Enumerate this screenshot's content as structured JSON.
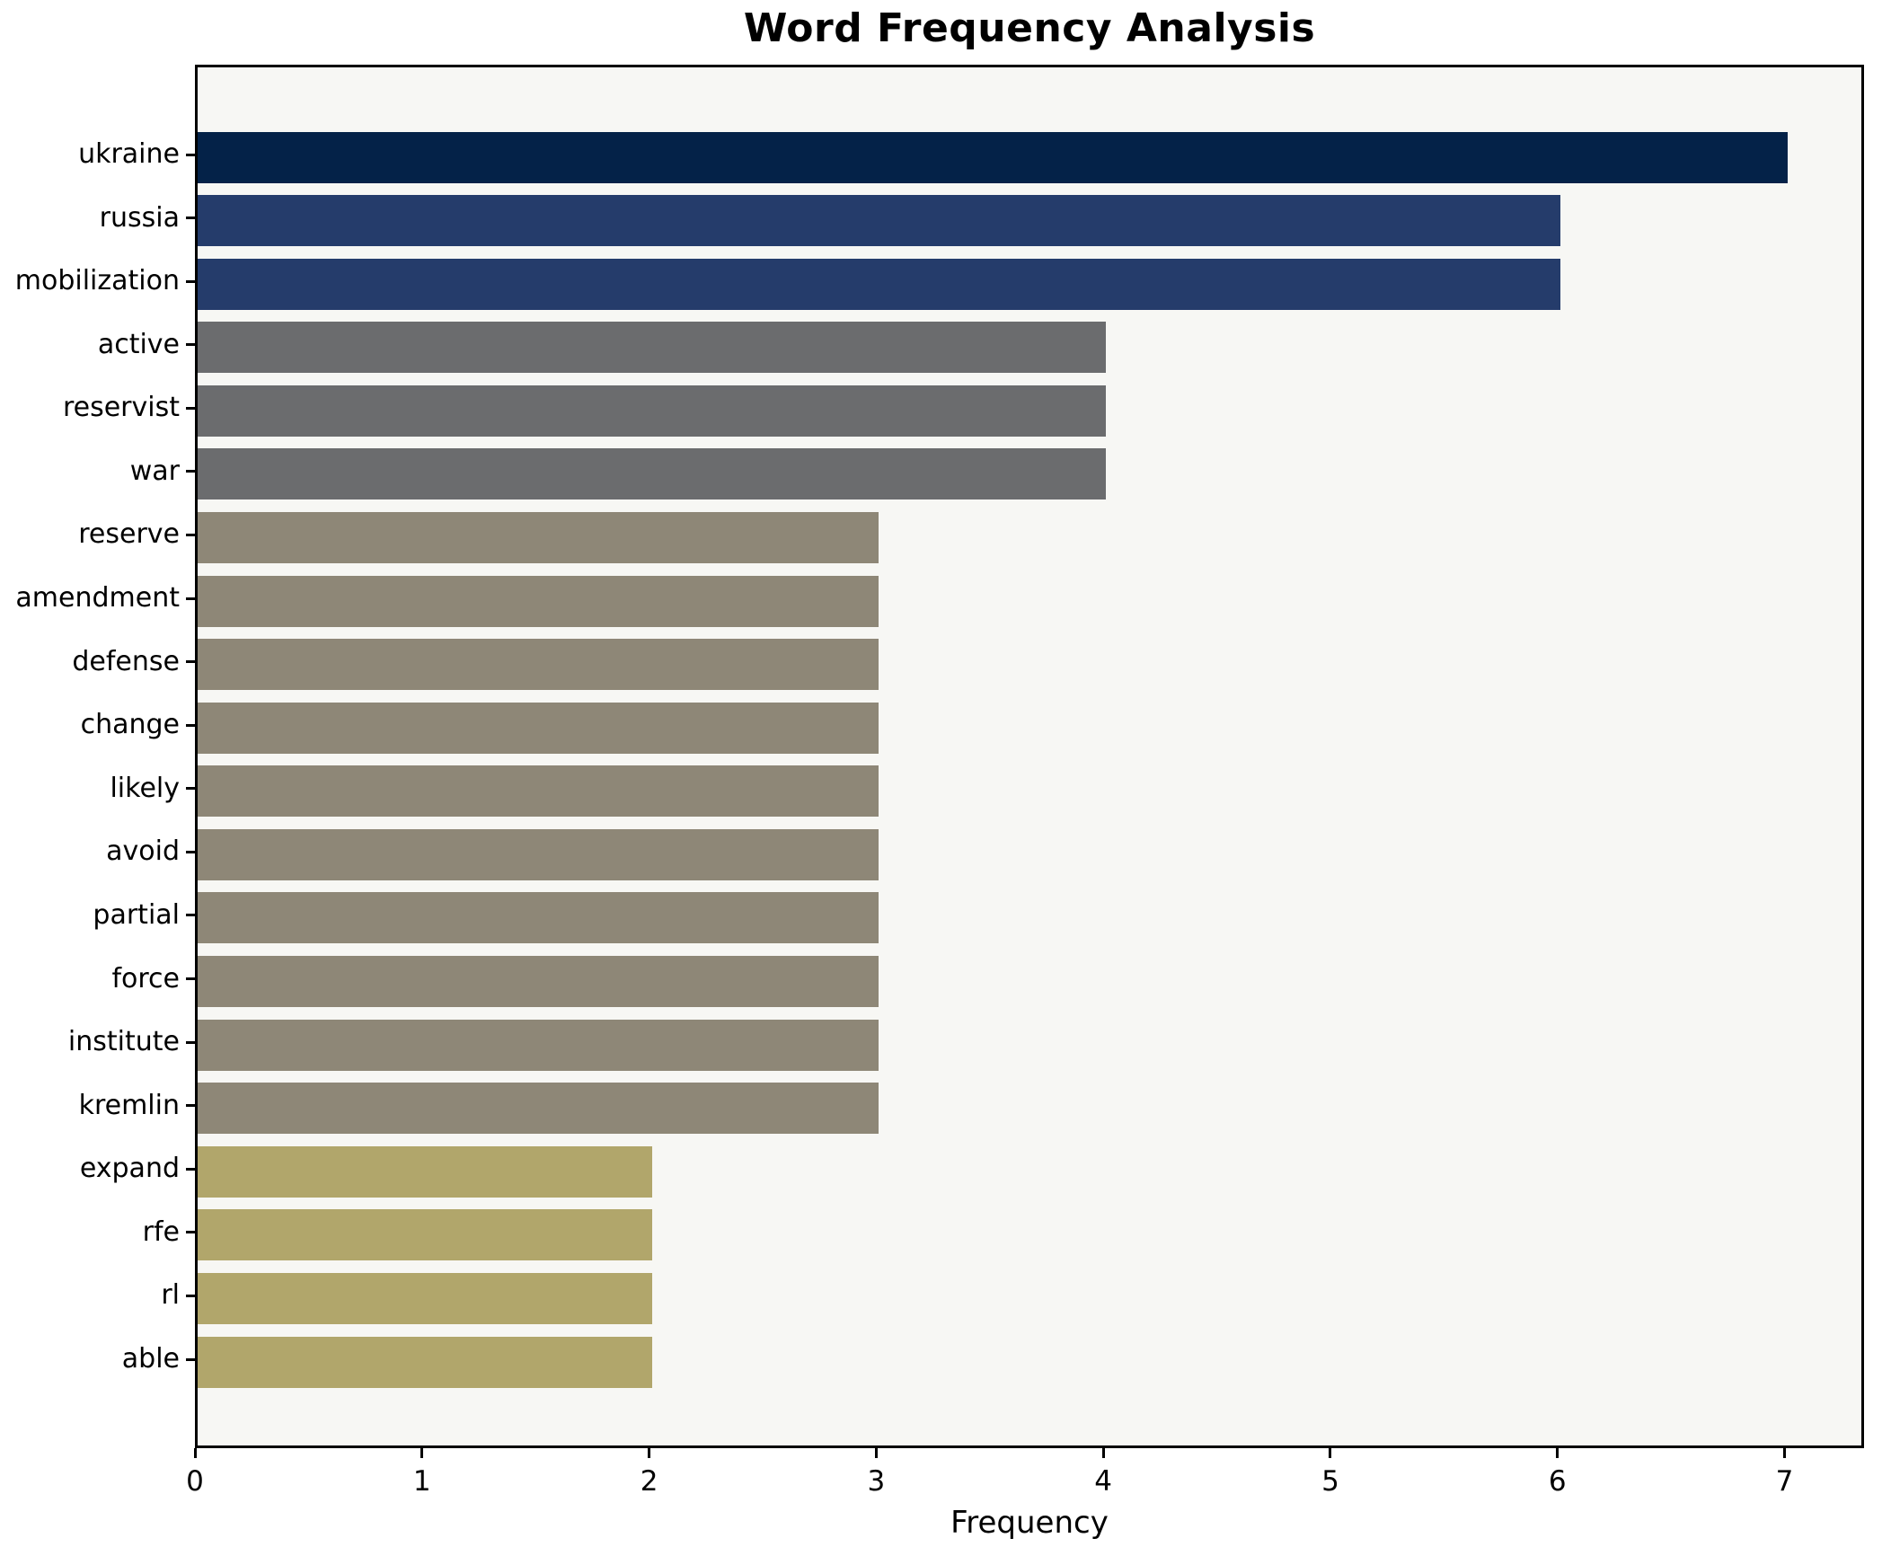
{
  "title": "Word Frequency Analysis",
  "chart_data": {
    "type": "bar",
    "orientation": "horizontal",
    "title": "Word Frequency Analysis",
    "xlabel": "Frequency",
    "ylabel": "",
    "categories": [
      "ukraine",
      "russia",
      "mobilization",
      "active",
      "reservist",
      "war",
      "reserve",
      "amendment",
      "defense",
      "change",
      "likely",
      "avoid",
      "partial",
      "force",
      "institute",
      "kremlin",
      "expand",
      "rfe",
      "rl",
      "able"
    ],
    "values": [
      7,
      6,
      6,
      4,
      4,
      4,
      3,
      3,
      3,
      3,
      3,
      3,
      3,
      3,
      3,
      3,
      2,
      2,
      2,
      2
    ],
    "xlim": [
      0,
      7.35
    ],
    "xticks": [
      0,
      1,
      2,
      3,
      4,
      5,
      6,
      7
    ],
    "grid": false,
    "legend": null,
    "value_colors": {
      "7": "#042248",
      "6": "#253c6b",
      "4": "#6b6c6e",
      "3": "#8e8777",
      "2": "#b1a66b"
    }
  },
  "colors": {
    "page_bg": "#ffffff",
    "plot_bg": "#f7f7f4",
    "spine": "#000000",
    "text": "#000000"
  }
}
